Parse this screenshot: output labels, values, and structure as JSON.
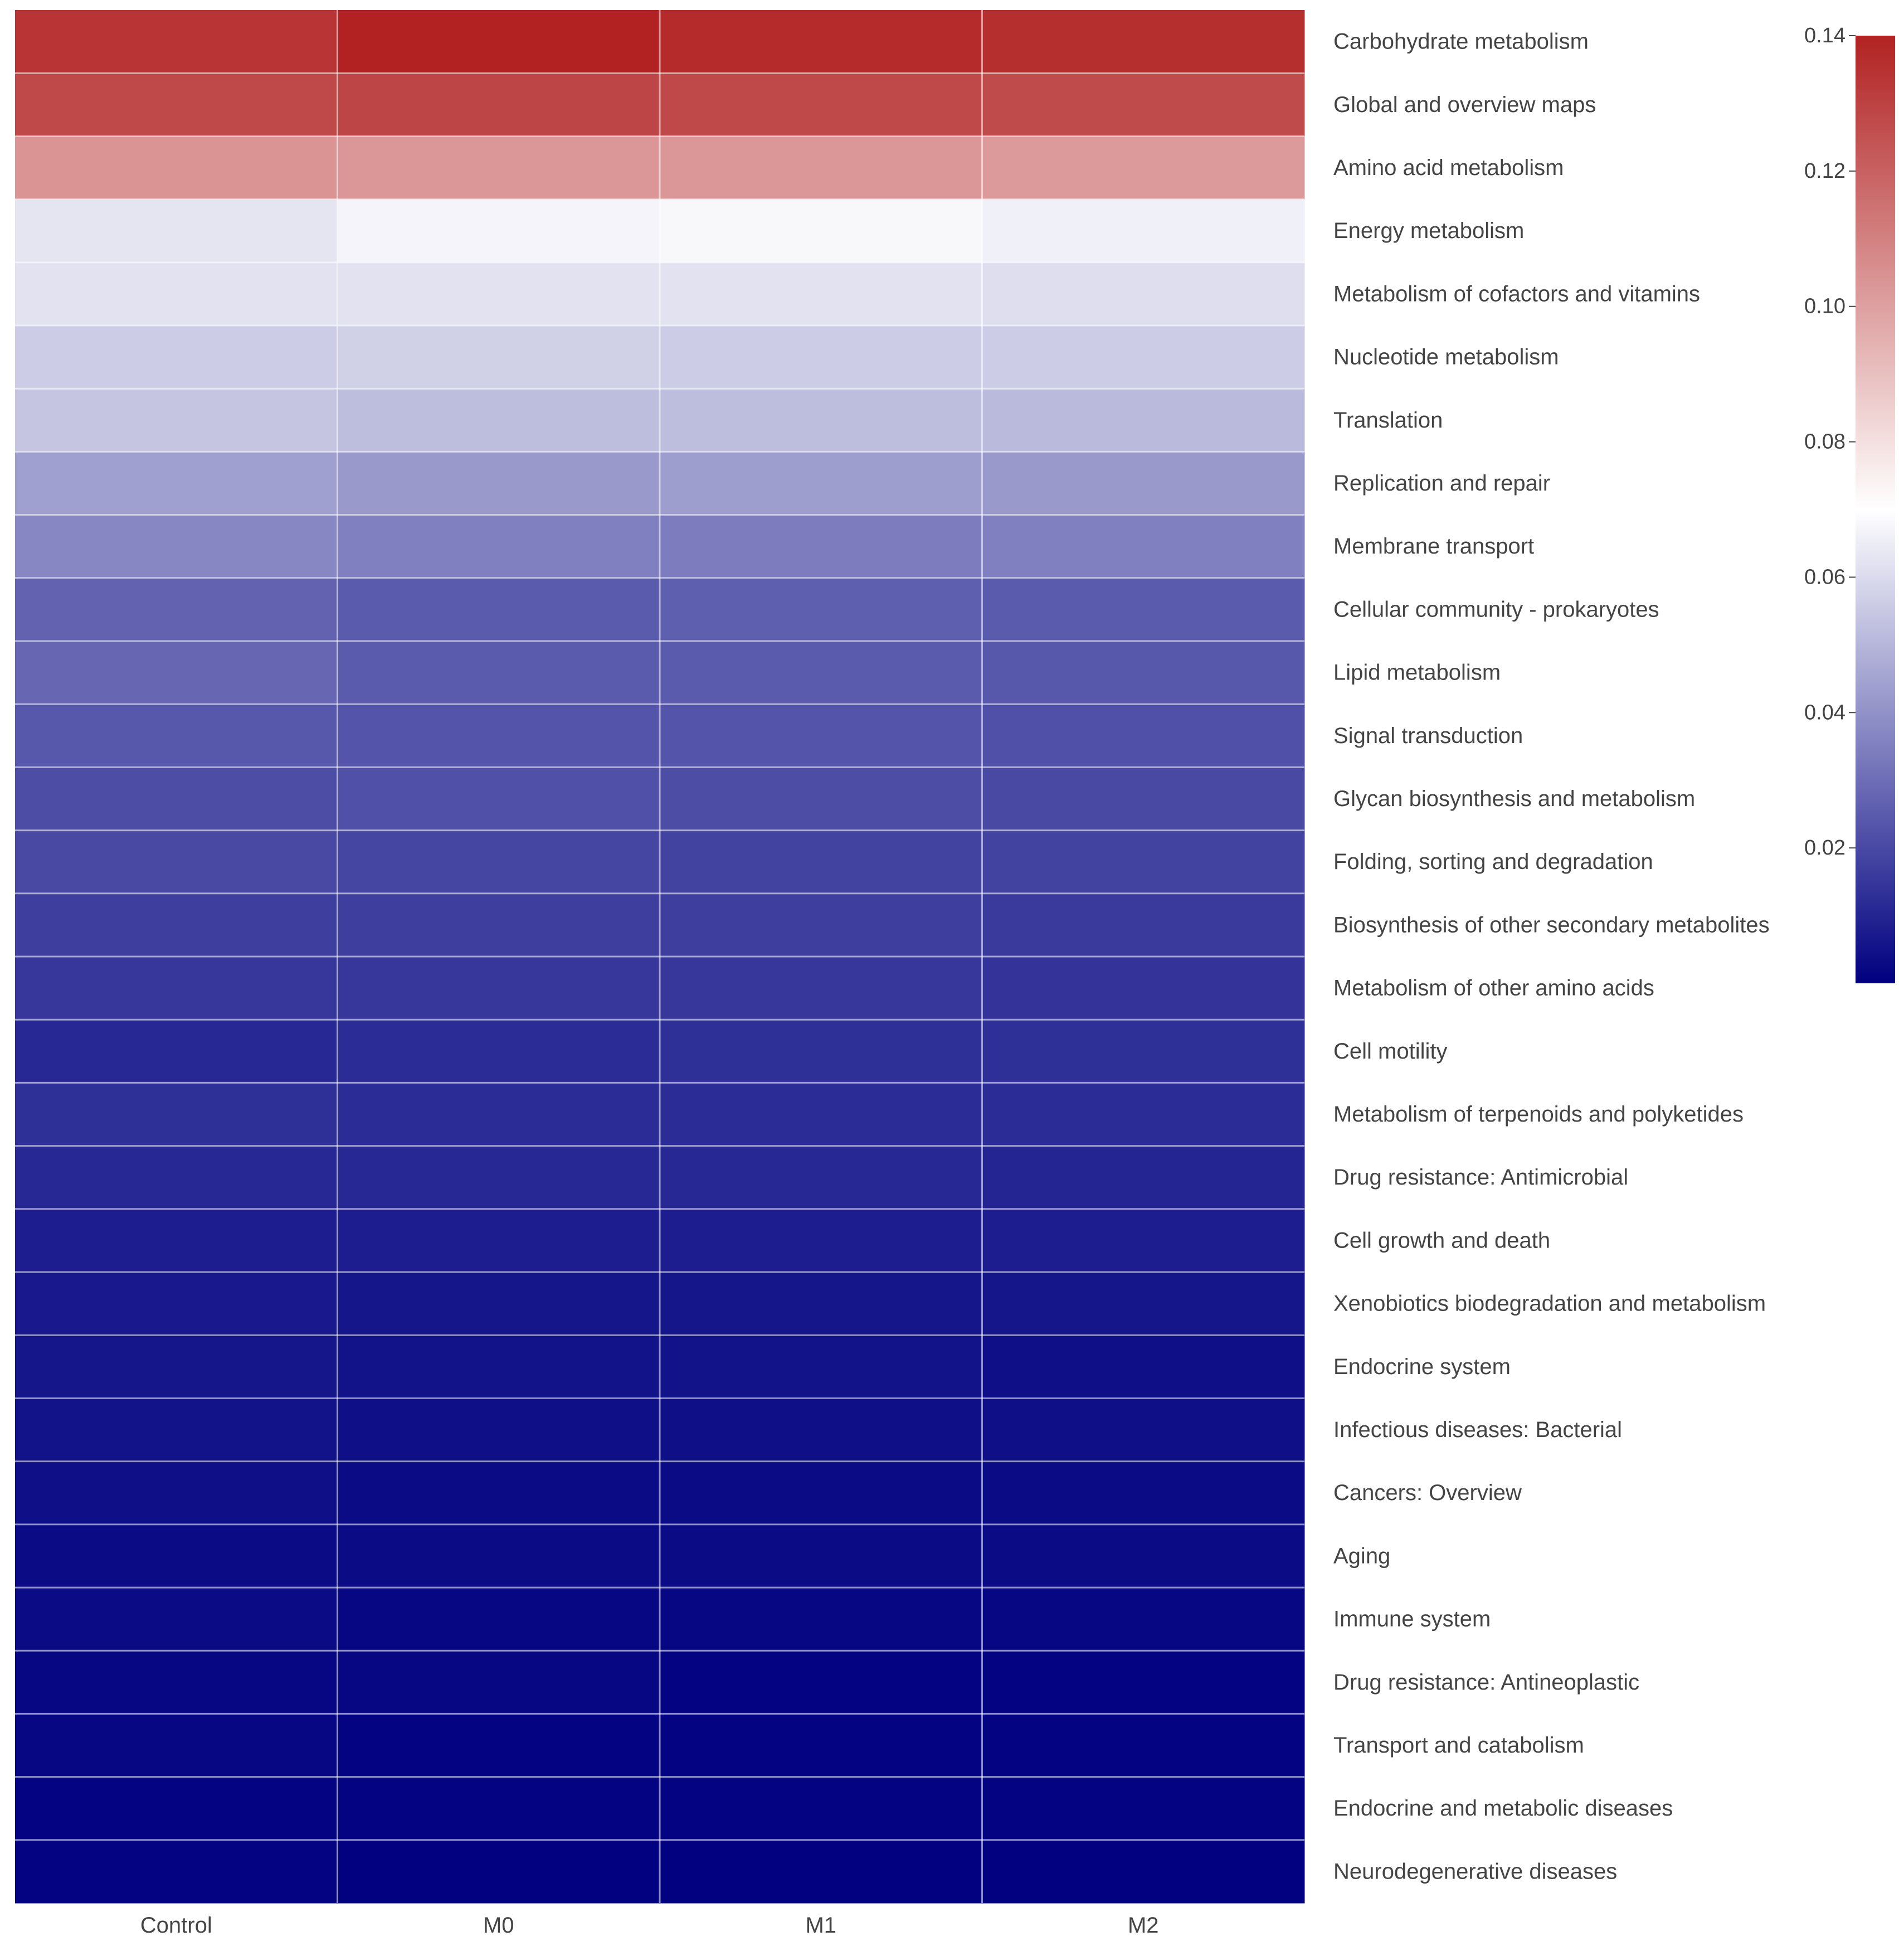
{
  "chart_data": {
    "type": "heatmap",
    "title": "",
    "xlabel": "",
    "ylabel": "",
    "columns": [
      "Control",
      "M0",
      "M1",
      "M2"
    ],
    "rows": [
      "Carbohydrate metabolism",
      "Global and overview maps",
      "Amino acid metabolism",
      "Energy metabolism",
      "Metabolism of cofactors and vitamins",
      "Nucleotide metabolism",
      "Translation",
      "Replication and repair",
      "Membrane transport",
      "Cellular community - prokaryotes",
      "Lipid metabolism",
      "Signal transduction",
      "Glycan biosynthesis and metabolism",
      "Folding, sorting and degradation",
      "Biosynthesis of other secondary metabolites",
      "Metabolism of other amino acids",
      "Cell motility",
      "Metabolism of terpenoids and polyketides",
      "Drug resistance: Antimicrobial",
      "Cell growth and death",
      "Xenobiotics biodegradation and metabolism",
      "Endocrine system",
      "Infectious diseases: Bacterial",
      "Cancers: Overview",
      "Aging",
      "Immune system",
      "Drug resistance: Antineoplastic",
      "Transport and catabolism",
      "Endocrine and metabolic diseases",
      "Neurodegenerative diseases"
    ],
    "values": [
      [
        0.134,
        0.141,
        0.137,
        0.136
      ],
      [
        0.128,
        0.129,
        0.128,
        0.127
      ],
      [
        0.104,
        0.103,
        0.103,
        0.102
      ],
      [
        0.063,
        0.067,
        0.068,
        0.066
      ],
      [
        0.062,
        0.062,
        0.062,
        0.061
      ],
      [
        0.056,
        0.057,
        0.056,
        0.056
      ],
      [
        0.054,
        0.052,
        0.052,
        0.051
      ],
      [
        0.044,
        0.042,
        0.043,
        0.042
      ],
      [
        0.037,
        0.035,
        0.034,
        0.035
      ],
      [
        0.027,
        0.025,
        0.026,
        0.025
      ],
      [
        0.028,
        0.025,
        0.025,
        0.024
      ],
      [
        0.024,
        0.023,
        0.023,
        0.022
      ],
      [
        0.021,
        0.022,
        0.021,
        0.02
      ],
      [
        0.02,
        0.019,
        0.018,
        0.018
      ],
      [
        0.017,
        0.017,
        0.017,
        0.016
      ],
      [
        0.015,
        0.015,
        0.015,
        0.014
      ],
      [
        0.011,
        0.012,
        0.013,
        0.013
      ],
      [
        0.013,
        0.012,
        0.012,
        0.012
      ],
      [
        0.011,
        0.011,
        0.011,
        0.01
      ],
      [
        0.008,
        0.008,
        0.008,
        0.008
      ],
      [
        0.007,
        0.006,
        0.006,
        0.006
      ],
      [
        0.006,
        0.005,
        0.005,
        0.004
      ],
      [
        0.005,
        0.004,
        0.004,
        0.004
      ],
      [
        0.004,
        0.003,
        0.003,
        0.003
      ],
      [
        0.003,
        0.003,
        0.003,
        0.003
      ],
      [
        0.003,
        0.002,
        0.002,
        0.002
      ],
      [
        0.002,
        0.002,
        0.001,
        0.001
      ],
      [
        0.002,
        0.001,
        0.001,
        0.001
      ],
      [
        0.001,
        0.001,
        0.001,
        0.001
      ],
      [
        0.001,
        0.0005,
        0.0005,
        0.0005
      ]
    ],
    "colorscale": {
      "min": 0.0,
      "mid": 0.07,
      "max": 0.14,
      "low_color": "#000080",
      "mid_color": "#ffffff",
      "high_color": "#b22222"
    },
    "colorbar": {
      "ticks": [
        0.14,
        0.12,
        0.1,
        0.08,
        0.06,
        0.04,
        0.02
      ],
      "tick_labels": [
        "0.14",
        "0.12",
        "0.10",
        "0.08",
        "0.06",
        "0.04",
        "0.02"
      ]
    },
    "grid": true
  }
}
